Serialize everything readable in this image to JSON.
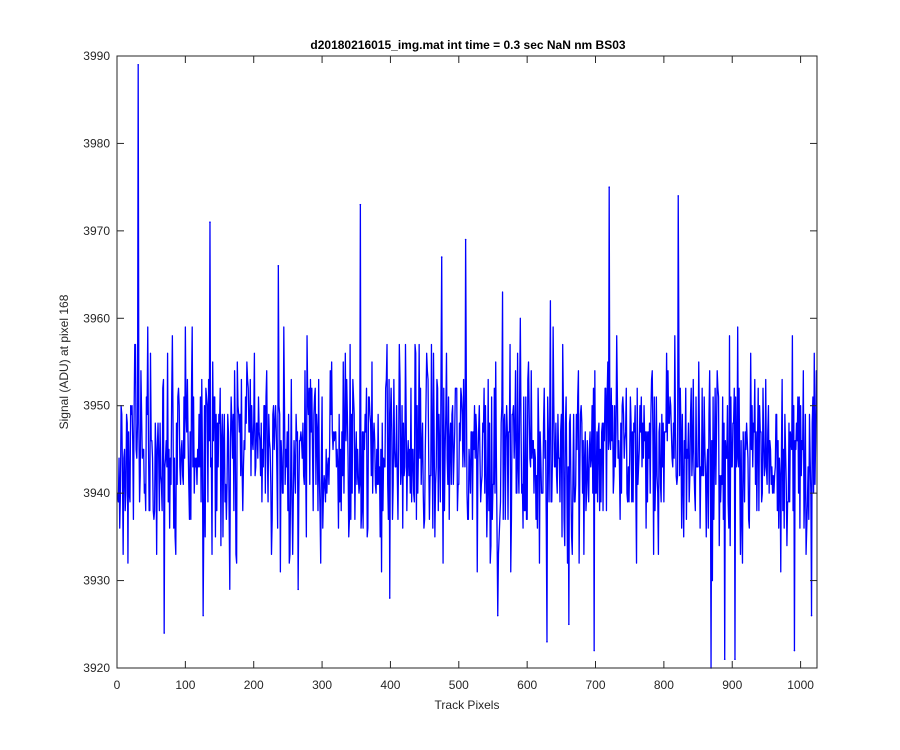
{
  "chart_data": {
    "type": "line",
    "title": "d20180216015_img.mat int time = 0.3 sec  NaN nm BS03",
    "xlabel": "Track Pixels",
    "ylabel": "Signal (ADU) at pixel 168",
    "xlim": [
      0,
      1024
    ],
    "ylim": [
      3920,
      3990
    ],
    "xticks": [
      0,
      100,
      200,
      300,
      400,
      500,
      600,
      700,
      800,
      900,
      1000
    ],
    "yticks": [
      3920,
      3930,
      3940,
      3950,
      3960,
      3970,
      3980,
      3990
    ],
    "grid": false,
    "legend": "none",
    "series": [
      {
        "color": "#0000ff",
        "n_points": 1024,
        "base_level": 3945,
        "spread": 6,
        "spikes": [
          {
            "x": 30,
            "y": 3989
          },
          {
            "x": 68,
            "y": 3924
          },
          {
            "x": 125,
            "y": 3926
          },
          {
            "x": 135,
            "y": 3971
          },
          {
            "x": 235,
            "y": 3966
          },
          {
            "x": 264,
            "y": 3929
          },
          {
            "x": 355,
            "y": 3973
          },
          {
            "x": 398,
            "y": 3928
          },
          {
            "x": 474,
            "y": 3967
          },
          {
            "x": 509,
            "y": 3969
          },
          {
            "x": 556,
            "y": 3926
          },
          {
            "x": 628,
            "y": 3923
          },
          {
            "x": 660,
            "y": 3925
          },
          {
            "x": 697,
            "y": 3922
          },
          {
            "x": 719,
            "y": 3975
          },
          {
            "x": 820,
            "y": 3974
          },
          {
            "x": 868,
            "y": 3920
          },
          {
            "x": 888,
            "y": 3921
          },
          {
            "x": 903,
            "y": 3921
          },
          {
            "x": 990,
            "y": 3922
          },
          {
            "x": 1015,
            "y": 3926
          }
        ]
      }
    ]
  }
}
